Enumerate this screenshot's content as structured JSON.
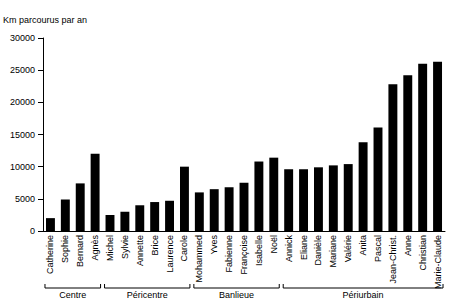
{
  "chart_data": {
    "type": "bar",
    "y_label": "Km parcourus par an",
    "categories": [
      "Catherine",
      "Sophie",
      "Bernard",
      "Agnès",
      "Michel",
      "Sylvie",
      "Annette",
      "Brice",
      "Laurence",
      "Carole",
      "Mohammed",
      "Yves",
      "Fabienne",
      "Françoise",
      "Isabelle",
      "Noël",
      "Annick",
      "Eliane",
      "Danièle",
      "Mariane",
      "Valérie",
      "Anita",
      "Pascal",
      "Jean-Christ.",
      "Anne",
      "Christian",
      "Marie-Claude"
    ],
    "category_groups": [
      "Centre",
      "Centre",
      "Centre",
      "Centre",
      "Péricentre",
      "Péricentre",
      "Péricentre",
      "Péricentre",
      "Péricentre",
      "Péricentre",
      "Banlieue",
      "Banlieue",
      "Banlieue",
      "Banlieue",
      "Banlieue",
      "Banlieue",
      "Périurbain",
      "Périurbain",
      "Périurbain",
      "Périurbain",
      "Périurbain",
      "Périurbain",
      "Périurbain",
      "Périurbain",
      "Périurbain",
      "Périurbain",
      "Périurbain"
    ],
    "values": [
      2000,
      4900,
      7400,
      12000,
      2500,
      3000,
      4000,
      4500,
      4700,
      10000,
      6000,
      6500,
      6800,
      7500,
      10800,
      11400,
      9600,
      9600,
      9900,
      10200,
      10400,
      13800,
      16100,
      22800,
      24200,
      26000,
      26300
    ],
    "color": "#000000",
    "ylim": [
      0,
      30000
    ],
    "yticks": [
      0,
      5000,
      10000,
      15000,
      20000,
      25000,
      30000
    ],
    "grid": false
  }
}
